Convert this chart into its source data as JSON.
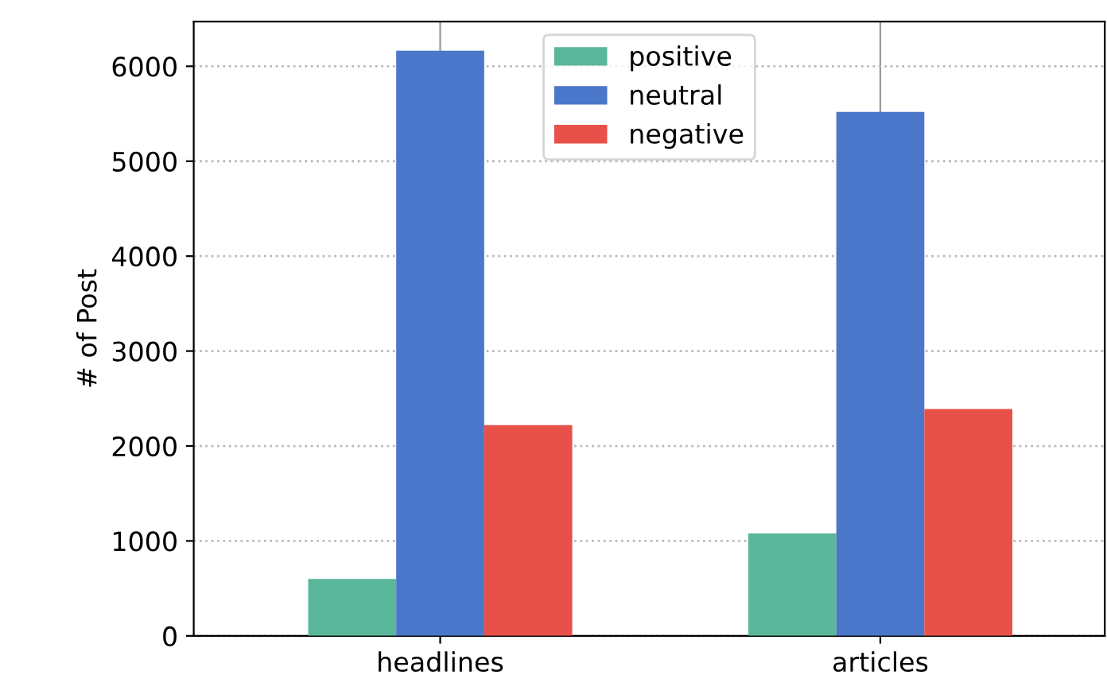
{
  "chart_data": {
    "type": "bar",
    "ylabel": "# of Post",
    "categories": [
      "headlines",
      "articles"
    ],
    "series": [
      {
        "name": "positive",
        "color": "#5ab79b",
        "values": [
          600,
          1080
        ]
      },
      {
        "name": "neutral",
        "color": "#4a77c9",
        "values": [
          6165,
          5520
        ]
      },
      {
        "name": "negative",
        "color": "#e8514a",
        "values": [
          2220,
          2390
        ]
      }
    ],
    "ylim": [
      0,
      6470
    ],
    "yticks": [
      0,
      1000,
      2000,
      3000,
      4000,
      5000,
      6000
    ],
    "grid": true,
    "legend": "top"
  }
}
